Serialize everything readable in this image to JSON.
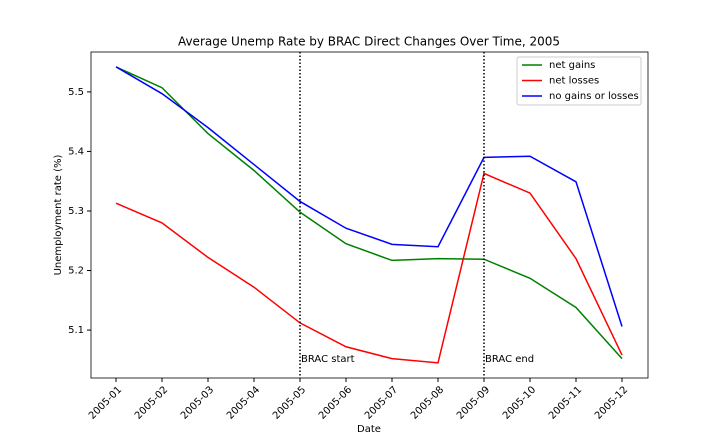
{
  "chart_data": {
    "type": "line",
    "title": "Average Unemp Rate by BRAC Direct Changes Over Time, 2005",
    "x_label": "Date",
    "y_label": "Unemployment rate (%)",
    "categories": [
      "2005-01",
      "2005-02",
      "2005-03",
      "2005-04",
      "2005-05",
      "2005-06",
      "2005-07",
      "2005-08",
      "2005-09",
      "2005-10",
      "2005-11",
      "2005-12"
    ],
    "series": [
      {
        "name": "net gains",
        "color": "#008000",
        "values": [
          5.542,
          5.507,
          5.43,
          5.368,
          5.298,
          5.245,
          5.217,
          5.22,
          5.219,
          5.187,
          5.138,
          5.052
        ]
      },
      {
        "name": "net losses",
        "color": "#ff0000",
        "values": [
          5.313,
          5.28,
          5.222,
          5.172,
          5.112,
          5.072,
          5.052,
          5.045,
          5.363,
          5.33,
          5.22,
          5.058
        ]
      },
      {
        "name": "no gains or losses",
        "color": "#0000ff",
        "values": [
          5.542,
          5.497,
          5.44,
          5.378,
          5.316,
          5.271,
          5.244,
          5.24,
          5.39,
          5.392,
          5.349,
          5.106
        ]
      }
    ],
    "annotations": [
      {
        "x": "2005-05",
        "label": "BRAC start"
      },
      {
        "x": "2005-09",
        "label": "BRAC end"
      }
    ],
    "ylim": [
      5.0195,
      5.567
    ],
    "yticks": [
      5.1,
      5.2,
      5.3,
      5.4,
      5.5
    ],
    "grid": false,
    "legend": "upper right"
  }
}
